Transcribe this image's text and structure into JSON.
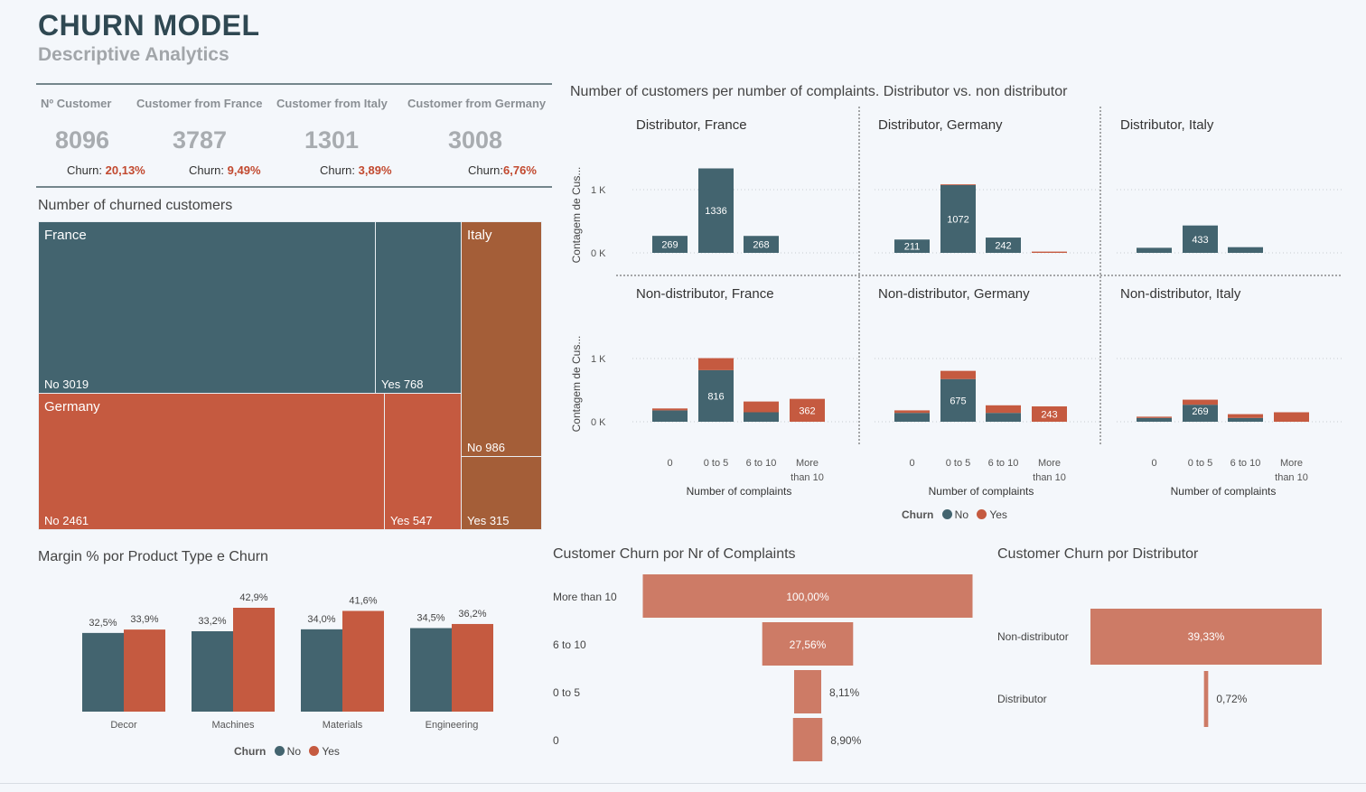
{
  "header": {
    "title": "CHURN MODEL",
    "subtitle": "Descriptive Analytics"
  },
  "colors": {
    "no": "#43646f",
    "yes": "#c55a40",
    "italy": "#a45e38",
    "funnel": "#cd7b66",
    "text_red": "#c2492f"
  },
  "kpis": [
    {
      "label": "Nº Customer",
      "value": "8096",
      "churn_label": "Churn: ",
      "churn_value": "20,13%"
    },
    {
      "label": "Customer from France",
      "value": "3787",
      "churn_label": "Churn: ",
      "churn_value": "9,49%"
    },
    {
      "label": "Customer from Italy",
      "value": "1301",
      "churn_label": "Churn: ",
      "churn_value": "3,89%"
    },
    {
      "label": "Customer from Germany",
      "value": "3008",
      "churn_label": "Churn:",
      "churn_value": "6,76%"
    }
  ],
  "treemap": {
    "title": "Number of churned customers",
    "countries": [
      {
        "name": "France",
        "no_label": "No 3019",
        "yes_label": "Yes 768",
        "no": 3019,
        "yes": 768
      },
      {
        "name": "Germany",
        "no_label": "No 2461",
        "yes_label": "Yes 547",
        "no": 2461,
        "yes": 547
      },
      {
        "name": "Italy",
        "no_label": "No 986",
        "yes_label": "Yes 315",
        "no": 986,
        "yes": 315
      }
    ]
  },
  "chart_data": [
    {
      "type": "bar",
      "id": "complaints_small_multiples",
      "title": "Number of customers per number of complaints. Distributor vs. non distributor",
      "xlabel": "Number of complaints",
      "ylabel": "Contagem de Cus...",
      "y_ticks": [
        "0 K",
        "1 K"
      ],
      "ylim": [
        0,
        1500
      ],
      "categories": [
        "0",
        "0 to 5",
        "6 to 10",
        "More than 10"
      ],
      "category_lines": [
        [
          "0"
        ],
        [
          "0 to 5"
        ],
        [
          "6 to 10"
        ],
        [
          "More",
          "than 10"
        ]
      ],
      "legend": {
        "title": "Churn",
        "no": "No",
        "yes": "Yes"
      },
      "panels": [
        {
          "title": "Distributor, France",
          "no": [
            269,
            1336,
            268,
            0
          ],
          "yes": [
            0,
            0,
            0,
            0
          ],
          "labels": [
            "269",
            "1336",
            "268",
            ""
          ]
        },
        {
          "title": "Distributor, Germany",
          "no": [
            211,
            1072,
            242,
            0
          ],
          "yes": [
            0,
            12,
            0,
            20
          ],
          "labels": [
            "211",
            "1072",
            "242",
            ""
          ]
        },
        {
          "title": "Distributor, Italy",
          "no": [
            80,
            433,
            90,
            0
          ],
          "yes": [
            0,
            0,
            0,
            0
          ],
          "labels": [
            "",
            "433",
            "",
            ""
          ]
        },
        {
          "title": "Non-distributor, France",
          "no": [
            180,
            816,
            150,
            0
          ],
          "yes": [
            30,
            190,
            170,
            362
          ],
          "labels": [
            "",
            "816",
            "",
            "362"
          ]
        },
        {
          "title": "Non-distributor, Germany",
          "no": [
            140,
            675,
            140,
            0
          ],
          "yes": [
            40,
            130,
            120,
            243
          ],
          "labels": [
            "",
            "675",
            "",
            "243"
          ]
        },
        {
          "title": "Non-distributor, Italy",
          "no": [
            60,
            269,
            60,
            0
          ],
          "yes": [
            20,
            80,
            60,
            150
          ],
          "labels": [
            "",
            "269",
            "",
            ""
          ]
        }
      ]
    },
    {
      "type": "bar",
      "id": "margin_by_product",
      "title": "Margin % por Product Type e Churn",
      "categories": [
        "Decor",
        "Machines",
        "Materials",
        "Engineering"
      ],
      "series": [
        {
          "name": "No",
          "values": [
            32.5,
            33.2,
            34.0,
            34.5
          ],
          "labels": [
            "32,5%",
            "33,2%",
            "34,0%",
            "34,5%"
          ]
        },
        {
          "name": "Yes",
          "values": [
            33.9,
            42.9,
            41.6,
            36.2
          ],
          "labels": [
            "33,9%",
            "42,9%",
            "41,6%",
            "36,2%"
          ]
        }
      ],
      "legend": {
        "title": "Churn",
        "no": "No",
        "yes": "Yes"
      }
    },
    {
      "type": "bar",
      "id": "churn_by_complaints",
      "title": "Customer Churn por Nr of Complaints",
      "categories": [
        "More than 10",
        "6 to 10",
        "0 to 5",
        "0"
      ],
      "values": [
        100.0,
        27.56,
        8.11,
        8.9
      ],
      "labels": [
        "100,00%",
        "27,56%",
        "8,11%",
        "8,90%"
      ]
    },
    {
      "type": "bar",
      "id": "churn_by_distributor",
      "title": "Customer Churn por Distributor",
      "categories": [
        "Non-distributor",
        "Distributor"
      ],
      "values": [
        39.33,
        0.72
      ],
      "labels": [
        "39,33%",
        "0,72%"
      ]
    }
  ]
}
